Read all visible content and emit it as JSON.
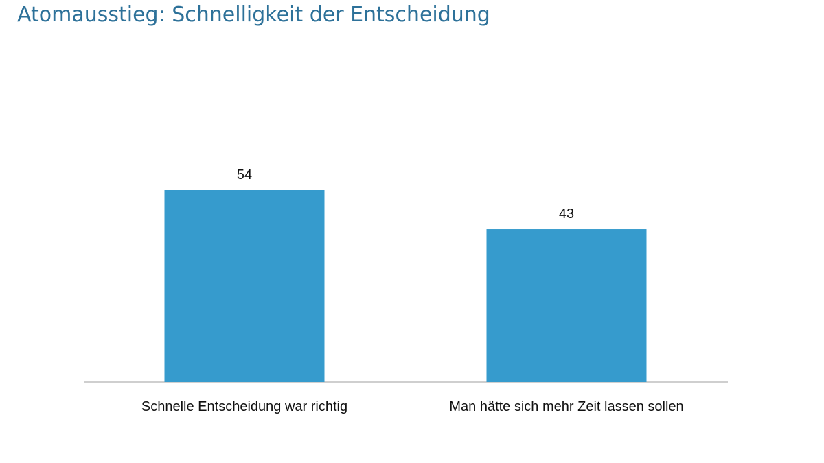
{
  "chart_data": {
    "type": "bar",
    "title": "Atomausstieg: Schnelligkeit der Entscheidung",
    "categories": [
      "Schnelle Entscheidung war richtig",
      "Man hätte sich mehr Zeit lassen sollen"
    ],
    "values": [
      54,
      43
    ],
    "data_labels": [
      "54",
      "43"
    ],
    "xlabel": "",
    "ylabel": "",
    "ylim": [
      0,
      54
    ],
    "grid": false,
    "legend": "none",
    "bar_color": "#369bcd",
    "title_color": "#2d7199",
    "axis_color": "#bfbfbf"
  }
}
